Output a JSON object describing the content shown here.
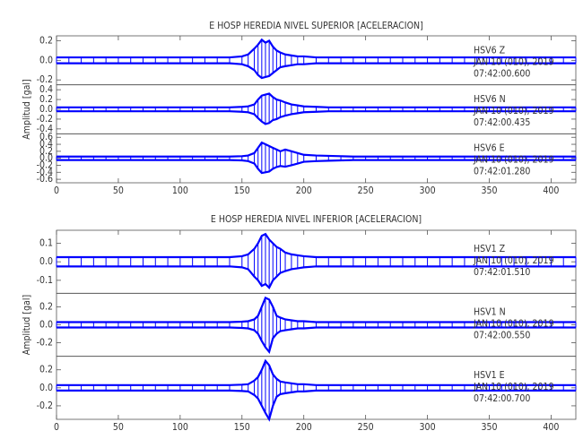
{
  "chart_data": [
    {
      "type": "line",
      "title": "E HOSP HEREDIA NIVEL SUPERIOR [ACELERACION]",
      "y_label": "Amplitud [gal]",
      "color": "#0000ff",
      "xlim": [
        0,
        420
      ],
      "xticks": [
        0,
        50,
        100,
        150,
        200,
        250,
        300,
        350,
        400
      ],
      "x": [
        0,
        10,
        20,
        30,
        40,
        50,
        60,
        70,
        80,
        90,
        100,
        110,
        120,
        130,
        140,
        150,
        155,
        160,
        163,
        166,
        169,
        172,
        175,
        178,
        181,
        185,
        190,
        195,
        200,
        210,
        220,
        230,
        240,
        250,
        260,
        270,
        280,
        290,
        300,
        310,
        320,
        330,
        340,
        350,
        360,
        370,
        380,
        390,
        400,
        410,
        420
      ],
      "panels": [
        {
          "station": "HSV6   Z",
          "date": "JAN 10 (010), 2019",
          "time": "07:42:00.600",
          "ylim": [
            -0.25,
            0.25
          ],
          "yticks": [
            -0.2,
            {
              "value": 0,
              "label": "0.0"
            },
            0.2
          ],
          "upper": [
            0.03,
            0.03,
            0.03,
            0.03,
            0.03,
            0.03,
            0.03,
            0.03,
            0.03,
            0.03,
            0.03,
            0.03,
            0.03,
            0.03,
            0.03,
            0.04,
            0.06,
            0.12,
            0.16,
            0.21,
            0.18,
            0.2,
            0.14,
            0.1,
            0.08,
            0.06,
            0.05,
            0.04,
            0.04,
            0.03,
            0.03,
            0.03,
            0.03,
            0.03,
            0.03,
            0.03,
            0.03,
            0.03,
            0.03,
            0.03,
            0.03,
            0.03,
            0.03,
            0.03,
            0.03,
            0.03,
            0.03,
            0.03,
            0.03,
            0.03,
            0.03
          ],
          "lower": [
            -0.03,
            -0.03,
            -0.03,
            -0.03,
            -0.03,
            -0.03,
            -0.03,
            -0.03,
            -0.03,
            -0.03,
            -0.03,
            -0.03,
            -0.03,
            -0.03,
            -0.03,
            -0.04,
            -0.06,
            -0.1,
            -0.15,
            -0.18,
            -0.17,
            -0.16,
            -0.13,
            -0.1,
            -0.07,
            -0.06,
            -0.05,
            -0.04,
            -0.04,
            -0.03,
            -0.03,
            -0.03,
            -0.03,
            -0.03,
            -0.03,
            -0.03,
            -0.03,
            -0.03,
            -0.03,
            -0.03,
            -0.03,
            -0.03,
            -0.03,
            -0.03,
            -0.03,
            -0.03,
            -0.03,
            -0.03,
            -0.03,
            -0.03,
            -0.03
          ]
        },
        {
          "station": "HSV6   N",
          "date": "JAN 10 (010), 2019",
          "time": "07:42:00.435",
          "ylim": [
            -0.5,
            0.5
          ],
          "yticks": [
            -0.4,
            -0.2,
            {
              "value": 0,
              "label": "0.0"
            },
            0.2,
            0.4
          ],
          "upper": [
            0.04,
            0.04,
            0.04,
            0.04,
            0.04,
            0.04,
            0.04,
            0.04,
            0.04,
            0.04,
            0.04,
            0.04,
            0.04,
            0.04,
            0.04,
            0.05,
            0.06,
            0.1,
            0.2,
            0.28,
            0.3,
            0.32,
            0.25,
            0.2,
            0.18,
            0.14,
            0.1,
            0.08,
            0.06,
            0.05,
            0.04,
            0.04,
            0.04,
            0.04,
            0.04,
            0.04,
            0.04,
            0.04,
            0.04,
            0.04,
            0.04,
            0.04,
            0.04,
            0.04,
            0.04,
            0.04,
            0.04,
            0.04,
            0.04,
            0.04,
            0.04
          ],
          "lower": [
            -0.04,
            -0.04,
            -0.04,
            -0.04,
            -0.04,
            -0.04,
            -0.04,
            -0.04,
            -0.04,
            -0.04,
            -0.04,
            -0.04,
            -0.04,
            -0.04,
            -0.04,
            -0.05,
            -0.06,
            -0.1,
            -0.18,
            -0.25,
            -0.3,
            -0.28,
            -0.22,
            -0.2,
            -0.16,
            -0.13,
            -0.1,
            -0.08,
            -0.06,
            -0.05,
            -0.04,
            -0.04,
            -0.04,
            -0.04,
            -0.04,
            -0.04,
            -0.04,
            -0.04,
            -0.04,
            -0.04,
            -0.04,
            -0.04,
            -0.04,
            -0.04,
            -0.04,
            -0.04,
            -0.04,
            -0.04,
            -0.04,
            -0.04,
            -0.04
          ]
        },
        {
          "station": "HSV6   E",
          "date": "JAN 10 (010), 2019",
          "time": "07:42:01.280",
          "ylim": [
            -0.7,
            0.7
          ],
          "yticks": [
            -0.6,
            -0.4,
            -0.2,
            {
              "value": 0,
              "label": "0.0"
            },
            0.2,
            0.4,
            0.6
          ],
          "upper": [
            0.05,
            0.05,
            0.05,
            0.05,
            0.05,
            0.05,
            0.05,
            0.05,
            0.05,
            0.05,
            0.05,
            0.05,
            0.05,
            0.05,
            0.05,
            0.06,
            0.08,
            0.15,
            0.3,
            0.45,
            0.4,
            0.35,
            0.3,
            0.25,
            0.2,
            0.25,
            0.2,
            0.15,
            0.1,
            0.08,
            0.07,
            0.06,
            0.05,
            0.05,
            0.05,
            0.05,
            0.05,
            0.05,
            0.05,
            0.05,
            0.05,
            0.05,
            0.05,
            0.05,
            0.05,
            0.05,
            0.05,
            0.05,
            0.05,
            0.05,
            0.05
          ],
          "lower": [
            -0.05,
            -0.05,
            -0.05,
            -0.05,
            -0.05,
            -0.05,
            -0.05,
            -0.05,
            -0.05,
            -0.05,
            -0.05,
            -0.05,
            -0.05,
            -0.05,
            -0.05,
            -0.06,
            -0.08,
            -0.15,
            -0.3,
            -0.42,
            -0.4,
            -0.38,
            -0.3,
            -0.25,
            -0.22,
            -0.24,
            -0.2,
            -0.15,
            -0.1,
            -0.08,
            -0.07,
            -0.06,
            -0.05,
            -0.05,
            -0.05,
            -0.05,
            -0.05,
            -0.05,
            -0.05,
            -0.05,
            -0.05,
            -0.05,
            -0.05,
            -0.05,
            -0.05,
            -0.05,
            -0.05,
            -0.05,
            -0.05,
            -0.05,
            -0.05
          ]
        }
      ]
    },
    {
      "type": "line",
      "title": "E HOSP HEREDIA NIVEL INFERIOR [ACELERACION]",
      "y_label": "Amplitud [gal]",
      "color": "#0000ff",
      "xlim": [
        0,
        420
      ],
      "xticks": [
        0,
        50,
        100,
        150,
        200,
        250,
        300,
        350,
        400
      ],
      "x": [
        0,
        10,
        20,
        30,
        40,
        50,
        60,
        70,
        80,
        90,
        100,
        110,
        120,
        130,
        140,
        150,
        155,
        160,
        163,
        166,
        169,
        172,
        175,
        178,
        181,
        185,
        190,
        195,
        200,
        210,
        220,
        230,
        240,
        250,
        260,
        270,
        280,
        290,
        300,
        310,
        320,
        330,
        340,
        350,
        360,
        370,
        380,
        390,
        400,
        410,
        420
      ],
      "panels": [
        {
          "station": "HSV1   Z",
          "date": "JAN 10 (010), 2019",
          "time": "07:42:01.510",
          "ylim": [
            -0.17,
            0.17
          ],
          "yticks": [
            -0.1,
            {
              "value": 0,
              "label": "0.0"
            },
            0.1
          ],
          "upper": [
            0.025,
            0.025,
            0.025,
            0.025,
            0.025,
            0.025,
            0.025,
            0.025,
            0.025,
            0.025,
            0.025,
            0.025,
            0.025,
            0.025,
            0.025,
            0.03,
            0.04,
            0.07,
            0.1,
            0.14,
            0.15,
            0.12,
            0.1,
            0.08,
            0.07,
            0.05,
            0.04,
            0.035,
            0.03,
            0.025,
            0.025,
            0.025,
            0.025,
            0.025,
            0.025,
            0.025,
            0.025,
            0.025,
            0.025,
            0.025,
            0.025,
            0.025,
            0.025,
            0.025,
            0.025,
            0.025,
            0.025,
            0.025,
            0.025,
            0.025,
            0.025
          ],
          "lower": [
            -0.025,
            -0.025,
            -0.025,
            -0.025,
            -0.025,
            -0.025,
            -0.025,
            -0.025,
            -0.025,
            -0.025,
            -0.025,
            -0.025,
            -0.025,
            -0.025,
            -0.025,
            -0.03,
            -0.04,
            -0.08,
            -0.1,
            -0.13,
            -0.12,
            -0.14,
            -0.1,
            -0.08,
            -0.06,
            -0.05,
            -0.04,
            -0.035,
            -0.03,
            -0.025,
            -0.025,
            -0.025,
            -0.025,
            -0.025,
            -0.025,
            -0.025,
            -0.025,
            -0.025,
            -0.025,
            -0.025,
            -0.025,
            -0.025,
            -0.025,
            -0.025,
            -0.025,
            -0.025,
            -0.025,
            -0.025,
            -0.025,
            -0.025,
            -0.025
          ]
        },
        {
          "station": "HSV1   N",
          "date": "JAN 10 (010), 2019",
          "time": "07:42:00.550",
          "ylim": [
            -0.35,
            0.35
          ],
          "yticks": [
            -0.2,
            {
              "value": 0,
              "label": "0.0"
            },
            0.2
          ],
          "upper": [
            0.03,
            0.03,
            0.03,
            0.03,
            0.03,
            0.03,
            0.03,
            0.03,
            0.03,
            0.03,
            0.03,
            0.03,
            0.03,
            0.03,
            0.03,
            0.035,
            0.04,
            0.06,
            0.1,
            0.2,
            0.3,
            0.28,
            0.2,
            0.1,
            0.08,
            0.06,
            0.05,
            0.04,
            0.04,
            0.03,
            0.03,
            0.03,
            0.03,
            0.03,
            0.03,
            0.03,
            0.03,
            0.03,
            0.03,
            0.03,
            0.03,
            0.03,
            0.03,
            0.03,
            0.03,
            0.03,
            0.03,
            0.03,
            0.03,
            0.03,
            0.03
          ],
          "lower": [
            -0.03,
            -0.03,
            -0.03,
            -0.03,
            -0.03,
            -0.03,
            -0.03,
            -0.03,
            -0.03,
            -0.03,
            -0.03,
            -0.03,
            -0.03,
            -0.03,
            -0.03,
            -0.035,
            -0.04,
            -0.06,
            -0.1,
            -0.18,
            -0.25,
            -0.3,
            -0.15,
            -0.1,
            -0.07,
            -0.06,
            -0.05,
            -0.04,
            -0.04,
            -0.03,
            -0.03,
            -0.03,
            -0.03,
            -0.03,
            -0.03,
            -0.03,
            -0.03,
            -0.03,
            -0.03,
            -0.03,
            -0.03,
            -0.03,
            -0.03,
            -0.03,
            -0.03,
            -0.03,
            -0.03,
            -0.03,
            -0.03,
            -0.03,
            -0.03
          ]
        },
        {
          "station": "HSV1   E",
          "date": "JAN 10 (010), 2019",
          "time": "07:42:00.700",
          "ylim": [
            -0.35,
            0.35
          ],
          "yticks": [
            -0.2,
            {
              "value": 0,
              "label": "0.0"
            },
            0.2
          ],
          "upper": [
            0.03,
            0.03,
            0.03,
            0.03,
            0.03,
            0.03,
            0.03,
            0.03,
            0.03,
            0.03,
            0.03,
            0.03,
            0.03,
            0.03,
            0.03,
            0.035,
            0.04,
            0.08,
            0.12,
            0.2,
            0.3,
            0.25,
            0.15,
            0.1,
            0.07,
            0.06,
            0.05,
            0.04,
            0.04,
            0.03,
            0.03,
            0.03,
            0.03,
            0.03,
            0.03,
            0.03,
            0.03,
            0.03,
            0.03,
            0.03,
            0.03,
            0.03,
            0.03,
            0.03,
            0.03,
            0.03,
            0.03,
            0.03,
            0.03,
            0.03,
            0.03
          ],
          "lower": [
            -0.03,
            -0.03,
            -0.03,
            -0.03,
            -0.03,
            -0.03,
            -0.03,
            -0.03,
            -0.03,
            -0.03,
            -0.03,
            -0.03,
            -0.03,
            -0.03,
            -0.03,
            -0.035,
            -0.04,
            -0.08,
            -0.12,
            -0.2,
            -0.28,
            -0.35,
            -0.2,
            -0.1,
            -0.07,
            -0.06,
            -0.05,
            -0.04,
            -0.04,
            -0.03,
            -0.03,
            -0.03,
            -0.03,
            -0.03,
            -0.03,
            -0.03,
            -0.03,
            -0.03,
            -0.03,
            -0.03,
            -0.03,
            -0.03,
            -0.03,
            -0.03,
            -0.03,
            -0.03,
            -0.03,
            -0.03,
            -0.03,
            -0.03,
            -0.03
          ]
        }
      ]
    }
  ]
}
